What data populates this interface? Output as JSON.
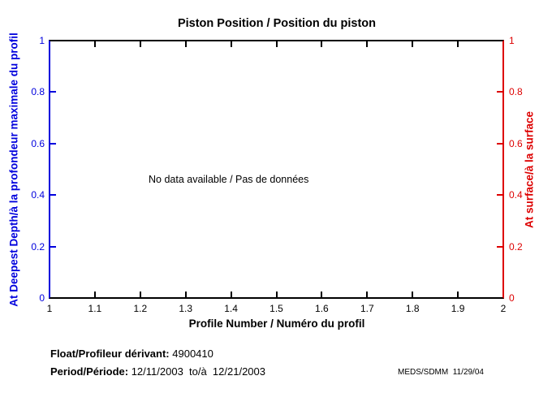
{
  "chart_data": {
    "type": "line",
    "title": "Piston Position / Position du piston",
    "xlabel": "Profile Number / Numéro du profil",
    "ylabel_left": "At Deepest Depth/à la profondeur maximale du profil",
    "ylabel_right": "At surface/à la surface",
    "xlim": [
      1,
      2
    ],
    "ylim_left": [
      0,
      1
    ],
    "ylim_right": [
      0,
      1
    ],
    "x_ticks": [
      "1",
      "1.1",
      "1.2",
      "1.3",
      "1.4",
      "1.5",
      "1.6",
      "1.7",
      "1.8",
      "1.9",
      "2"
    ],
    "y_ticks_left": [
      "1",
      "0.8",
      "0.6",
      "0.4",
      "0.2",
      "0"
    ],
    "y_ticks_right": [
      "1",
      "0.8",
      "0.6",
      "0.4",
      "0.2",
      "0"
    ],
    "grid": false,
    "legend": "none",
    "series": [],
    "no_data_message": "No data available / Pas de données",
    "colors": {
      "left_axis": "#0000dd",
      "right_axis": "#dd0000",
      "frame": "#000000",
      "background": "#ffffff"
    }
  },
  "footer": {
    "float_label": "Float/Profileur dérivant:",
    "float_value": "4900410",
    "period_label": "Period/Période:",
    "period_value": "12/11/2003  to/à  12/21/2003",
    "credit": "MEDS/SDMM  11/29/04"
  }
}
